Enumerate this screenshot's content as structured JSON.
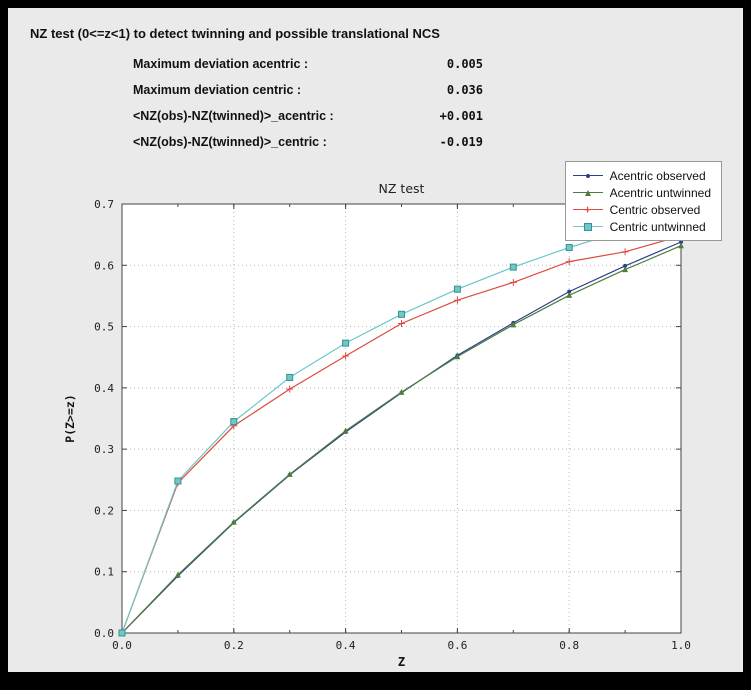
{
  "header": {
    "title": "NZ test (0<=z<1) to detect twinning and possible translational NCS"
  },
  "stats": {
    "rows": [
      {
        "label": "Maximum deviation acentric :",
        "value": "0.005"
      },
      {
        "label": "Maximum deviation centric :",
        "value": "0.036"
      },
      {
        "label": "<NZ(obs)-NZ(twinned)>_acentric :",
        "value": "+0.001"
      },
      {
        "label": "<NZ(obs)-NZ(twinned)>_centric :",
        "value": "-0.019"
      }
    ]
  },
  "colors": {
    "outer_frame": "#000000",
    "window_bg": "#eaeaea",
    "plot_bg": "#ffffff",
    "grid": "#b8b8b8",
    "axis_frame": "#444444",
    "tick_text": "#222222"
  },
  "chart_data": {
    "type": "line",
    "title": "NZ test",
    "xlabel": "Z",
    "ylabel": "P(Z>=z)",
    "xlim": [
      0.0,
      1.0
    ],
    "ylim": [
      0.0,
      0.7
    ],
    "grid": true,
    "legend_position": "top-right",
    "x": [
      0.0,
      0.1,
      0.2,
      0.3,
      0.4,
      0.5,
      0.6,
      0.7,
      0.8,
      0.9,
      1.0
    ],
    "x_tick_labels": [
      "0.0",
      "0.2",
      "0.4",
      "0.6",
      "0.8",
      "1.0"
    ],
    "y_tick_labels": [
      "0.0",
      "0.1",
      "0.2",
      "0.3",
      "0.4",
      "0.5",
      "0.6",
      "0.7"
    ],
    "series": [
      {
        "name": "Acentric observed",
        "color": "#2b3f8f",
        "marker": "dot",
        "values": [
          0.0,
          0.093,
          0.18,
          0.258,
          0.328,
          0.392,
          0.453,
          0.506,
          0.557,
          0.599,
          0.638
        ]
      },
      {
        "name": "Acentric untwinned",
        "color": "#4e7e3a",
        "marker": "triangle",
        "values": [
          0.0,
          0.095,
          0.181,
          0.259,
          0.33,
          0.393,
          0.451,
          0.503,
          0.551,
          0.593,
          0.632
        ]
      },
      {
        "name": "Centric observed",
        "color": "#dd4b42",
        "marker": "plus",
        "values": [
          0.0,
          0.245,
          0.338,
          0.398,
          0.452,
          0.505,
          0.543,
          0.572,
          0.606,
          0.622,
          0.648
        ]
      },
      {
        "name": "Centric untwinned",
        "color": "#6fc7c7",
        "marker": "square",
        "marker_edge": "#35928f",
        "values": [
          0.0,
          0.248,
          0.345,
          0.417,
          0.473,
          0.52,
          0.561,
          0.597,
          0.629,
          0.657,
          0.683
        ]
      }
    ]
  }
}
